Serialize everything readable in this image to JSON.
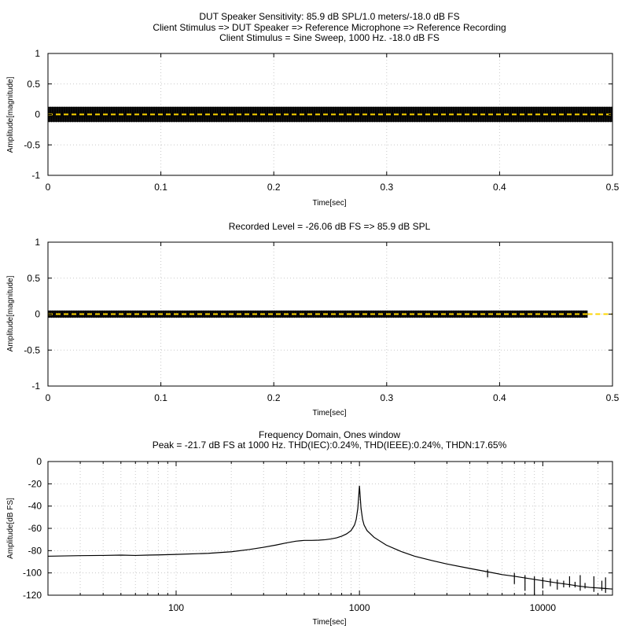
{
  "chart_data": [
    {
      "type": "line",
      "title_lines": [
        "DUT Speaker Sensitivity: 85.9 dB SPL/1.0 meters/-18.0 dB FS",
        "Client Stimulus => DUT Speaker => Reference Microphone => Reference Recording",
        "Client Stimulus = Sine Sweep, 1000 Hz. -18.0 dB FS"
      ],
      "xlabel": "Time[sec]",
      "ylabel": "Amplitude[magnitude]",
      "xlim": [
        0,
        0.5
      ],
      "ylim": [
        -1,
        1
      ],
      "xticks": [
        "0",
        "0.1",
        "0.2",
        "0.3",
        "0.4",
        "0.5"
      ],
      "yticks": [
        "1",
        "0.5",
        "0",
        "-0.5",
        "-1"
      ],
      "grid": true,
      "signal": {
        "amplitude": 0.125,
        "start": 0,
        "end": 0.5,
        "band_color": "#000000",
        "center_color": "#ffd700"
      }
    },
    {
      "type": "line",
      "title_lines": [
        "Recorded Level = -26.06 dB FS  => 85.9 dB SPL"
      ],
      "xlabel": "Time[sec]",
      "ylabel": "Amplitude[magnitude]",
      "xlim": [
        0,
        0.5
      ],
      "ylim": [
        -1,
        1
      ],
      "xticks": [
        "0",
        "0.1",
        "0.2",
        "0.3",
        "0.4",
        "0.5"
      ],
      "yticks": [
        "1",
        "0.5",
        "0",
        "-0.5",
        "-1"
      ],
      "grid": true,
      "signal": {
        "amplitude": 0.05,
        "start": 0,
        "end": 0.478,
        "band_color": "#000000",
        "center_color": "#ffd700"
      }
    },
    {
      "type": "line",
      "title_lines": [
        "Frequency Domain, Ones window",
        "Peak = -21.7 dB FS at 1000 Hz. THD(IEC):0.24%, THD(IEEE):0.24%, THDN:17.65%"
      ],
      "xlabel": "Time[sec]",
      "ylabel": "Amplitude[dB FS]",
      "xscale": "log",
      "xlim": [
        20,
        24000
      ],
      "ylim": [
        -120,
        0
      ],
      "xticks": [
        "100",
        "1000",
        "10000"
      ],
      "yticks": [
        "0",
        "-20",
        "-40",
        "-60",
        "-80",
        "-100",
        "-120"
      ],
      "grid": true,
      "series": [
        {
          "x": [
            20,
            30,
            40,
            50,
            60,
            70,
            80,
            100,
            150,
            200,
            250,
            300,
            350,
            400,
            450,
            500,
            550,
            600,
            650,
            700,
            750,
            800,
            850,
            900,
            940,
            960,
            980,
            990,
            1000,
            1010,
            1020,
            1040,
            1060,
            1100,
            1200,
            1400,
            1700,
            2000,
            2500,
            3000,
            4000,
            5000,
            6000,
            7000,
            8000,
            10000,
            12000,
            14000,
            16000,
            18000,
            20000,
            22000,
            24000
          ],
          "y": [
            -85,
            -84.5,
            -84.3,
            -84,
            -84.3,
            -84,
            -83.8,
            -83.4,
            -82.4,
            -81,
            -79,
            -77,
            -75,
            -73,
            -71.5,
            -70.8,
            -70.8,
            -70.6,
            -70.2,
            -69.5,
            -68.5,
            -67,
            -65,
            -62,
            -57,
            -52,
            -42,
            -32,
            -21.7,
            -32,
            -42,
            -52,
            -57,
            -62,
            -68,
            -75,
            -81,
            -85,
            -89,
            -92,
            -96,
            -99,
            -101.5,
            -103,
            -104.5,
            -107,
            -109,
            -110.5,
            -112,
            -113,
            -113.5,
            -114,
            -114.5
          ]
        }
      ],
      "spikes": [
        {
          "x": 5000,
          "low": -104,
          "high": -97
        },
        {
          "x": 7000,
          "low": -110,
          "high": -100
        },
        {
          "x": 8000,
          "low": -116,
          "high": -102
        },
        {
          "x": 9000,
          "low": -120,
          "high": -103
        },
        {
          "x": 10000,
          "low": -114,
          "high": -104
        },
        {
          "x": 11000,
          "low": -112,
          "high": -105
        },
        {
          "x": 12000,
          "low": -115,
          "high": -106
        },
        {
          "x": 13000,
          "low": -113,
          "high": -107
        },
        {
          "x": 14000,
          "low": -113,
          "high": -103
        },
        {
          "x": 15000,
          "low": -113,
          "high": -108
        },
        {
          "x": 16000,
          "low": -116,
          "high": -102
        },
        {
          "x": 17000,
          "low": -114,
          "high": -109
        },
        {
          "x": 19000,
          "low": -117,
          "high": -103
        },
        {
          "x": 21000,
          "low": -116,
          "high": -107
        },
        {
          "x": 22000,
          "low": -118,
          "high": -104
        }
      ]
    }
  ]
}
